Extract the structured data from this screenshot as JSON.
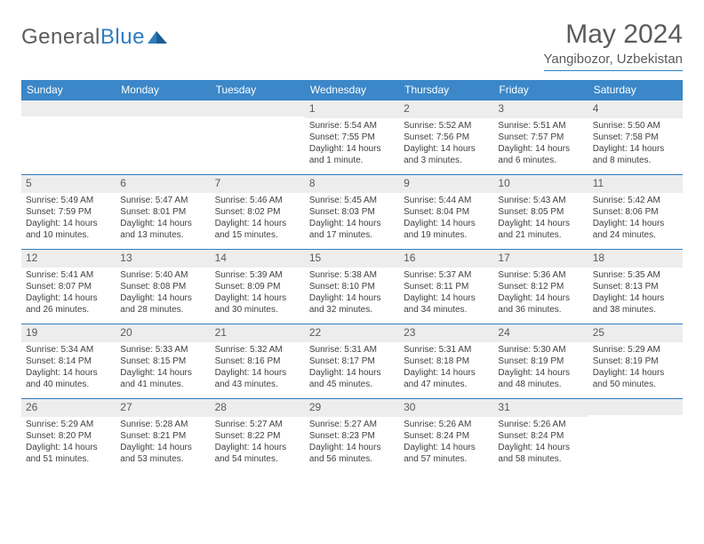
{
  "logo": {
    "text_gray": "General",
    "text_blue": "Blue"
  },
  "title": "May 2024",
  "location": "Yangibozor, Uzbekistan",
  "colors": {
    "header_bg": "#3b87c8",
    "header_text": "#ffffff",
    "rule": "#2f7dc0",
    "daynum_bg": "#ededed",
    "body_text": "#414141",
    "title_text": "#5b5b5b"
  },
  "day_headers": [
    "Sunday",
    "Monday",
    "Tuesday",
    "Wednesday",
    "Thursday",
    "Friday",
    "Saturday"
  ],
  "weeks": [
    [
      {
        "n": "",
        "sr": "",
        "ss": "",
        "dl": ""
      },
      {
        "n": "",
        "sr": "",
        "ss": "",
        "dl": ""
      },
      {
        "n": "",
        "sr": "",
        "ss": "",
        "dl": ""
      },
      {
        "n": "1",
        "sr": "Sunrise: 5:54 AM",
        "ss": "Sunset: 7:55 PM",
        "dl": "Daylight: 14 hours and 1 minute."
      },
      {
        "n": "2",
        "sr": "Sunrise: 5:52 AM",
        "ss": "Sunset: 7:56 PM",
        "dl": "Daylight: 14 hours and 3 minutes."
      },
      {
        "n": "3",
        "sr": "Sunrise: 5:51 AM",
        "ss": "Sunset: 7:57 PM",
        "dl": "Daylight: 14 hours and 6 minutes."
      },
      {
        "n": "4",
        "sr": "Sunrise: 5:50 AM",
        "ss": "Sunset: 7:58 PM",
        "dl": "Daylight: 14 hours and 8 minutes."
      }
    ],
    [
      {
        "n": "5",
        "sr": "Sunrise: 5:49 AM",
        "ss": "Sunset: 7:59 PM",
        "dl": "Daylight: 14 hours and 10 minutes."
      },
      {
        "n": "6",
        "sr": "Sunrise: 5:47 AM",
        "ss": "Sunset: 8:01 PM",
        "dl": "Daylight: 14 hours and 13 minutes."
      },
      {
        "n": "7",
        "sr": "Sunrise: 5:46 AM",
        "ss": "Sunset: 8:02 PM",
        "dl": "Daylight: 14 hours and 15 minutes."
      },
      {
        "n": "8",
        "sr": "Sunrise: 5:45 AM",
        "ss": "Sunset: 8:03 PM",
        "dl": "Daylight: 14 hours and 17 minutes."
      },
      {
        "n": "9",
        "sr": "Sunrise: 5:44 AM",
        "ss": "Sunset: 8:04 PM",
        "dl": "Daylight: 14 hours and 19 minutes."
      },
      {
        "n": "10",
        "sr": "Sunrise: 5:43 AM",
        "ss": "Sunset: 8:05 PM",
        "dl": "Daylight: 14 hours and 21 minutes."
      },
      {
        "n": "11",
        "sr": "Sunrise: 5:42 AM",
        "ss": "Sunset: 8:06 PM",
        "dl": "Daylight: 14 hours and 24 minutes."
      }
    ],
    [
      {
        "n": "12",
        "sr": "Sunrise: 5:41 AM",
        "ss": "Sunset: 8:07 PM",
        "dl": "Daylight: 14 hours and 26 minutes."
      },
      {
        "n": "13",
        "sr": "Sunrise: 5:40 AM",
        "ss": "Sunset: 8:08 PM",
        "dl": "Daylight: 14 hours and 28 minutes."
      },
      {
        "n": "14",
        "sr": "Sunrise: 5:39 AM",
        "ss": "Sunset: 8:09 PM",
        "dl": "Daylight: 14 hours and 30 minutes."
      },
      {
        "n": "15",
        "sr": "Sunrise: 5:38 AM",
        "ss": "Sunset: 8:10 PM",
        "dl": "Daylight: 14 hours and 32 minutes."
      },
      {
        "n": "16",
        "sr": "Sunrise: 5:37 AM",
        "ss": "Sunset: 8:11 PM",
        "dl": "Daylight: 14 hours and 34 minutes."
      },
      {
        "n": "17",
        "sr": "Sunrise: 5:36 AM",
        "ss": "Sunset: 8:12 PM",
        "dl": "Daylight: 14 hours and 36 minutes."
      },
      {
        "n": "18",
        "sr": "Sunrise: 5:35 AM",
        "ss": "Sunset: 8:13 PM",
        "dl": "Daylight: 14 hours and 38 minutes."
      }
    ],
    [
      {
        "n": "19",
        "sr": "Sunrise: 5:34 AM",
        "ss": "Sunset: 8:14 PM",
        "dl": "Daylight: 14 hours and 40 minutes."
      },
      {
        "n": "20",
        "sr": "Sunrise: 5:33 AM",
        "ss": "Sunset: 8:15 PM",
        "dl": "Daylight: 14 hours and 41 minutes."
      },
      {
        "n": "21",
        "sr": "Sunrise: 5:32 AM",
        "ss": "Sunset: 8:16 PM",
        "dl": "Daylight: 14 hours and 43 minutes."
      },
      {
        "n": "22",
        "sr": "Sunrise: 5:31 AM",
        "ss": "Sunset: 8:17 PM",
        "dl": "Daylight: 14 hours and 45 minutes."
      },
      {
        "n": "23",
        "sr": "Sunrise: 5:31 AM",
        "ss": "Sunset: 8:18 PM",
        "dl": "Daylight: 14 hours and 47 minutes."
      },
      {
        "n": "24",
        "sr": "Sunrise: 5:30 AM",
        "ss": "Sunset: 8:19 PM",
        "dl": "Daylight: 14 hours and 48 minutes."
      },
      {
        "n": "25",
        "sr": "Sunrise: 5:29 AM",
        "ss": "Sunset: 8:19 PM",
        "dl": "Daylight: 14 hours and 50 minutes."
      }
    ],
    [
      {
        "n": "26",
        "sr": "Sunrise: 5:29 AM",
        "ss": "Sunset: 8:20 PM",
        "dl": "Daylight: 14 hours and 51 minutes."
      },
      {
        "n": "27",
        "sr": "Sunrise: 5:28 AM",
        "ss": "Sunset: 8:21 PM",
        "dl": "Daylight: 14 hours and 53 minutes."
      },
      {
        "n": "28",
        "sr": "Sunrise: 5:27 AM",
        "ss": "Sunset: 8:22 PM",
        "dl": "Daylight: 14 hours and 54 minutes."
      },
      {
        "n": "29",
        "sr": "Sunrise: 5:27 AM",
        "ss": "Sunset: 8:23 PM",
        "dl": "Daylight: 14 hours and 56 minutes."
      },
      {
        "n": "30",
        "sr": "Sunrise: 5:26 AM",
        "ss": "Sunset: 8:24 PM",
        "dl": "Daylight: 14 hours and 57 minutes."
      },
      {
        "n": "31",
        "sr": "Sunrise: 5:26 AM",
        "ss": "Sunset: 8:24 PM",
        "dl": "Daylight: 14 hours and 58 minutes."
      },
      {
        "n": "",
        "sr": "",
        "ss": "",
        "dl": ""
      }
    ]
  ]
}
